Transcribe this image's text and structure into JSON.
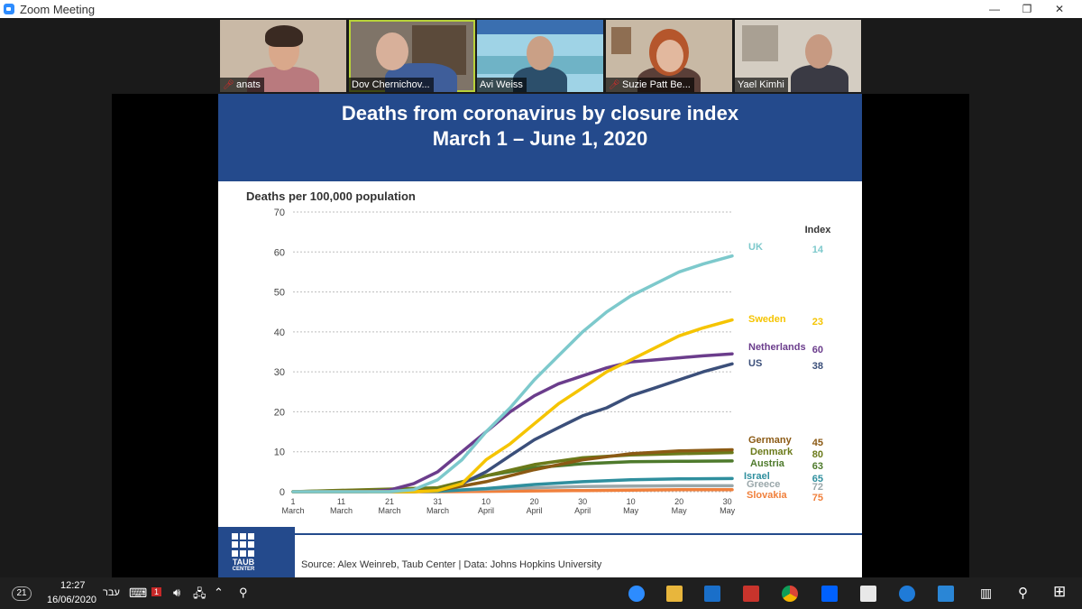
{
  "window": {
    "title": "Zoom Meeting",
    "min": "—",
    "restore": "❐",
    "close": "✕"
  },
  "participants": [
    {
      "name": "anats",
      "muted": true
    },
    {
      "name": "Dov Chernichov...",
      "muted": false
    },
    {
      "name": "Avi Weiss",
      "muted": false
    },
    {
      "name": "Suzie Patt Be...",
      "muted": true
    },
    {
      "name": "Yael Kimhi",
      "muted": false
    }
  ],
  "slide": {
    "title_line1": "Deaths from coronavirus by closure index",
    "title_line2": "March 1 – June 1, 2020",
    "logo_line1": "TAUB",
    "logo_line2": "CENTER",
    "source": "Source: Alex Weinreb, Taub Center | Data: Johns Hopkins University"
  },
  "chart_data": {
    "type": "line",
    "ylabel": "Deaths per 100,000 population",
    "ylim": [
      0,
      70
    ],
    "yticks": [
      0,
      10,
      20,
      30,
      40,
      50,
      60,
      70
    ],
    "xlim": [
      1,
      92
    ],
    "xticks": [
      {
        "x": 1,
        "top": "1",
        "bottom": "March"
      },
      {
        "x": 11,
        "top": "11",
        "bottom": "March"
      },
      {
        "x": 21,
        "top": "21",
        "bottom": "March"
      },
      {
        "x": 31,
        "top": "31",
        "bottom": "March"
      },
      {
        "x": 41,
        "top": "10",
        "bottom": "April"
      },
      {
        "x": 51,
        "top": "20",
        "bottom": "April"
      },
      {
        "x": 61,
        "top": "30",
        "bottom": "April"
      },
      {
        "x": 71,
        "top": "10",
        "bottom": "May"
      },
      {
        "x": 81,
        "top": "20",
        "bottom": "May"
      },
      {
        "x": 91,
        "top": "30",
        "bottom": "May"
      }
    ],
    "index_header": "Index",
    "grid": "horizontal dotted",
    "series": [
      {
        "name": "UK",
        "index": "14",
        "color": "#7dc9cc",
        "x": [
          1,
          21,
          26,
          31,
          36,
          41,
          46,
          51,
          56,
          61,
          66,
          71,
          76,
          81,
          86,
          92
        ],
        "y": [
          0,
          0,
          0.5,
          3,
          8,
          15,
          21,
          28,
          34,
          40,
          45,
          49,
          52,
          55,
          57,
          59
        ]
      },
      {
        "name": "Sweden",
        "index": "23",
        "color": "#f5c400",
        "x": [
          1,
          21,
          26,
          31,
          36,
          41,
          46,
          51,
          56,
          61,
          66,
          71,
          76,
          81,
          86,
          92
        ],
        "y": [
          0,
          0,
          0,
          0.3,
          2,
          8,
          12,
          17,
          22,
          26,
          30,
          33,
          36,
          39,
          41,
          43
        ]
      },
      {
        "name": "Netherlands",
        "index": "60",
        "color": "#6b3d8c",
        "x": [
          1,
          16,
          21,
          26,
          31,
          36,
          41,
          46,
          51,
          56,
          61,
          66,
          71,
          76,
          81,
          86,
          92
        ],
        "y": [
          0,
          0,
          0.4,
          2,
          5,
          10,
          15,
          20,
          24,
          27,
          29,
          31,
          32.5,
          33,
          33.5,
          34,
          34.5
        ]
      },
      {
        "name": "US",
        "index": "38",
        "color": "#3b4f7a",
        "x": [
          1,
          26,
          31,
          36,
          41,
          46,
          51,
          56,
          61,
          66,
          71,
          76,
          81,
          86,
          92
        ],
        "y": [
          0,
          0,
          0.3,
          2,
          5,
          9,
          13,
          16,
          19,
          21,
          24,
          26,
          28,
          30,
          32
        ]
      },
      {
        "name": "Germany",
        "index": "45",
        "color": "#8b5a14",
        "x": [
          1,
          31,
          41,
          51,
          61,
          71,
          81,
          92
        ],
        "y": [
          0,
          0.3,
          2.5,
          5.5,
          8,
          9.5,
          10.2,
          10.5
        ]
      },
      {
        "name": "Denmark",
        "index": "80",
        "color": "#6b7a1a",
        "x": [
          1,
          31,
          41,
          51,
          61,
          71,
          81,
          92
        ],
        "y": [
          0,
          1,
          4,
          6.8,
          8.5,
          9.2,
          9.5,
          9.8
        ]
      },
      {
        "name": "Austria",
        "index": "63",
        "color": "#4e7a2c",
        "x": [
          1,
          31,
          41,
          51,
          61,
          71,
          81,
          92
        ],
        "y": [
          0,
          0.8,
          4,
          6,
          7,
          7.5,
          7.6,
          7.7
        ]
      },
      {
        "name": "Israel",
        "index": "65",
        "color": "#2f8f9e",
        "x": [
          1,
          31,
          41,
          51,
          61,
          71,
          81,
          92
        ],
        "y": [
          0,
          0.1,
          0.8,
          1.8,
          2.5,
          3,
          3.2,
          3.3
        ]
      },
      {
        "name": "Greece",
        "index": "72",
        "color": "#9aa7aa",
        "x": [
          1,
          31,
          41,
          51,
          61,
          71,
          81,
          92
        ],
        "y": [
          0,
          0.2,
          0.6,
          1,
          1.3,
          1.4,
          1.5,
          1.5
        ]
      },
      {
        "name": "Slovakia",
        "index": "75",
        "color": "#f0803c",
        "x": [
          1,
          31,
          41,
          51,
          61,
          71,
          81,
          92
        ],
        "y": [
          0,
          0,
          0.1,
          0.2,
          0.3,
          0.4,
          0.5,
          0.5
        ]
      }
    ]
  },
  "taskbar": {
    "badge": "21",
    "time": "12:27",
    "date": "16/06/2020",
    "lang": "עבר",
    "notif_count": "1"
  }
}
